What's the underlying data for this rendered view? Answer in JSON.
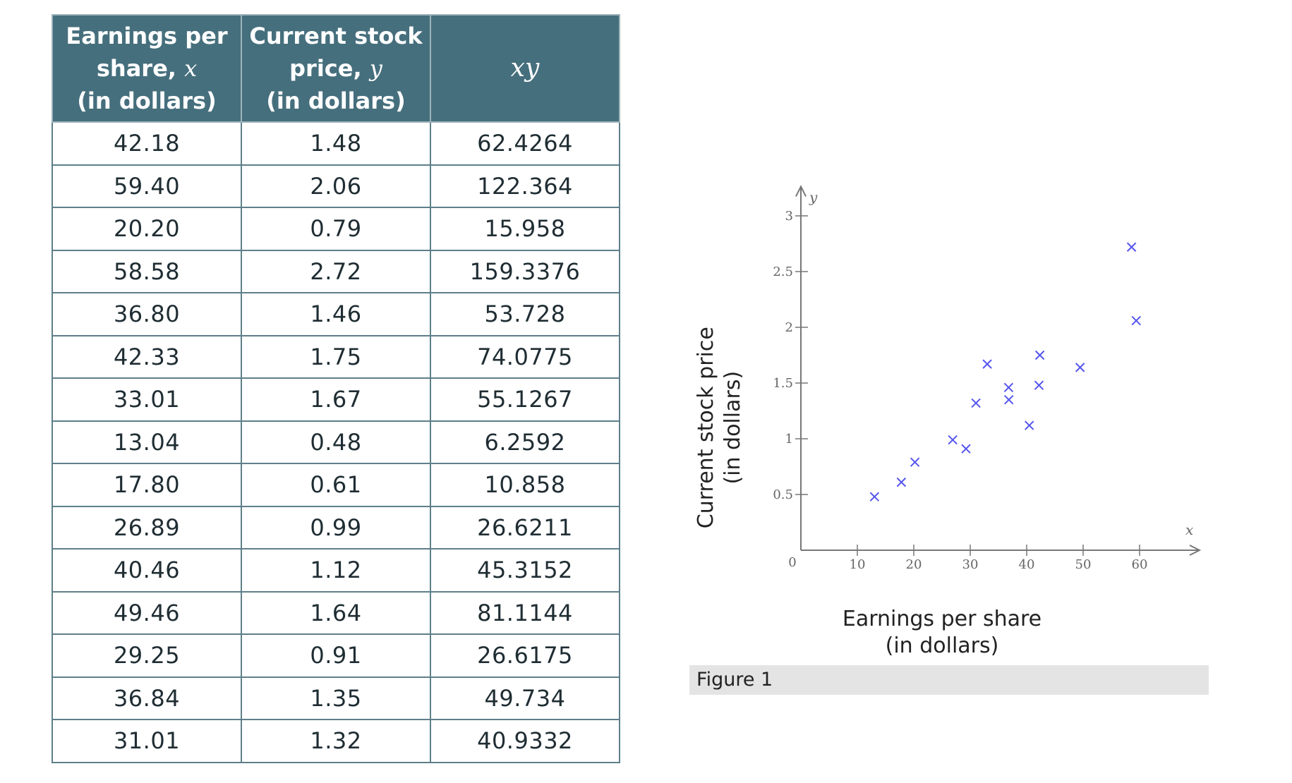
{
  "table": {
    "headers": [
      {
        "line1": "Earnings per",
        "line2_prefix": "share, ",
        "var": "x",
        "line3": "(in dollars)"
      },
      {
        "line1": "Current stock",
        "line2_prefix": "price, ",
        "var": "y",
        "line3": "(in dollars)"
      },
      {
        "label": "xy"
      }
    ],
    "rows": [
      [
        "42.18",
        "1.48",
        "62.4264"
      ],
      [
        "59.40",
        "2.06",
        "122.364"
      ],
      [
        "20.20",
        "0.79",
        "15.958"
      ],
      [
        "58.58",
        "2.72",
        "159.3376"
      ],
      [
        "36.80",
        "1.46",
        "53.728"
      ],
      [
        "42.33",
        "1.75",
        "74.0775"
      ],
      [
        "33.01",
        "1.67",
        "55.1267"
      ],
      [
        "13.04",
        "0.48",
        "6.2592"
      ],
      [
        "17.80",
        "0.61",
        "10.858"
      ],
      [
        "26.89",
        "0.99",
        "26.6211"
      ],
      [
        "40.46",
        "1.12",
        "45.3152"
      ],
      [
        "49.46",
        "1.64",
        "81.1144"
      ],
      [
        "29.25",
        "0.91",
        "26.6175"
      ],
      [
        "36.84",
        "1.35",
        "49.734"
      ],
      [
        "31.01",
        "1.32",
        "40.9332"
      ]
    ]
  },
  "chart_data": {
    "type": "scatter",
    "title": "",
    "xlabel": [
      "Earnings per share",
      "(in dollars)"
    ],
    "ylabel": [
      "Current stock price",
      "(in dollars)"
    ],
    "x_axis_var": "x",
    "y_axis_var": "y",
    "origin_label": "0",
    "xlim": [
      0,
      70
    ],
    "ylim": [
      0,
      3.2
    ],
    "xticks": [
      10,
      20,
      30,
      40,
      50,
      60
    ],
    "yticks": [
      0.5,
      1,
      1.5,
      2,
      2.5,
      3
    ],
    "ytick_labels": [
      "0.5",
      "1",
      "1.5",
      "2",
      "2.5",
      "3"
    ],
    "grid": false,
    "marker": "x",
    "color": "#5555ee",
    "points": [
      {
        "x": 42.18,
        "y": 1.48
      },
      {
        "x": 59.4,
        "y": 2.06
      },
      {
        "x": 20.2,
        "y": 0.79
      },
      {
        "x": 58.58,
        "y": 2.72
      },
      {
        "x": 36.8,
        "y": 1.46
      },
      {
        "x": 42.33,
        "y": 1.75
      },
      {
        "x": 33.01,
        "y": 1.67
      },
      {
        "x": 13.04,
        "y": 0.48
      },
      {
        "x": 17.8,
        "y": 0.61
      },
      {
        "x": 26.89,
        "y": 0.99
      },
      {
        "x": 40.46,
        "y": 1.12
      },
      {
        "x": 49.46,
        "y": 1.64
      },
      {
        "x": 29.25,
        "y": 0.91
      },
      {
        "x": 36.84,
        "y": 1.35
      },
      {
        "x": 31.01,
        "y": 1.32
      }
    ]
  },
  "figure": {
    "caption": "Figure 1"
  }
}
